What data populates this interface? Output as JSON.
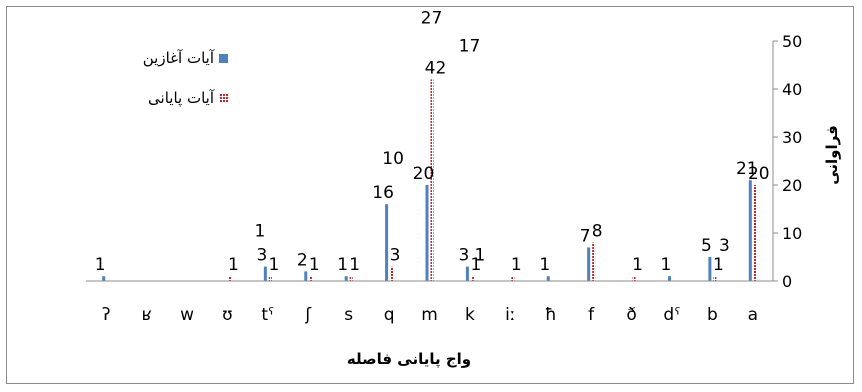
{
  "chart_data": {
    "type": "bar",
    "xlabel": "واج پایانی فاصله",
    "ylabel": "فراوانی",
    "ylim": [
      0,
      50
    ],
    "yticks": [
      "0",
      "10",
      "20",
      "30",
      "40",
      "50"
    ],
    "grid": false,
    "legend_position": "top-left",
    "categories": [
      "ʔ",
      "ʁ",
      "w",
      "ʊ",
      "tˤ",
      "ʃ",
      "s",
      "q",
      "m",
      "k",
      "iː",
      "ħ",
      "f",
      "ð",
      "dˤ",
      "b",
      "a"
    ],
    "series": [
      {
        "name": "آیات آغازین",
        "color": "#4f81bd",
        "pattern": "solid",
        "values": [
          1,
          0,
          0,
          0,
          3,
          2,
          1,
          16,
          20,
          3,
          0,
          1,
          7,
          0,
          1,
          5,
          21
        ],
        "labels": [
          "1",
          "",
          "",
          "",
          "3",
          "2",
          "1",
          "16",
          "20",
          "3",
          "",
          "1",
          "7",
          "",
          "1",
          "5",
          "21"
        ]
      },
      {
        "name": "آیات پایانی",
        "color": "#c0292b",
        "pattern": "dotted",
        "values": [
          0,
          0,
          0,
          1,
          1,
          1,
          1,
          3,
          42,
          1,
          1,
          0,
          8,
          1,
          0,
          1,
          20
        ],
        "labels": [
          "",
          "",
          "",
          "1",
          "1",
          "1",
          "1",
          "3",
          "42",
          "1",
          "1",
          "",
          "8",
          "1",
          "",
          "1",
          "20"
        ]
      }
    ],
    "extra_value_labels": [
      {
        "category": "tˤ",
        "text": "1"
      },
      {
        "category": "q",
        "text": "10"
      },
      {
        "category": "m",
        "text": "27"
      },
      {
        "category": "m",
        "text": "17"
      },
      {
        "category": "k",
        "text": "1"
      },
      {
        "category": "b",
        "text": "3"
      }
    ]
  }
}
